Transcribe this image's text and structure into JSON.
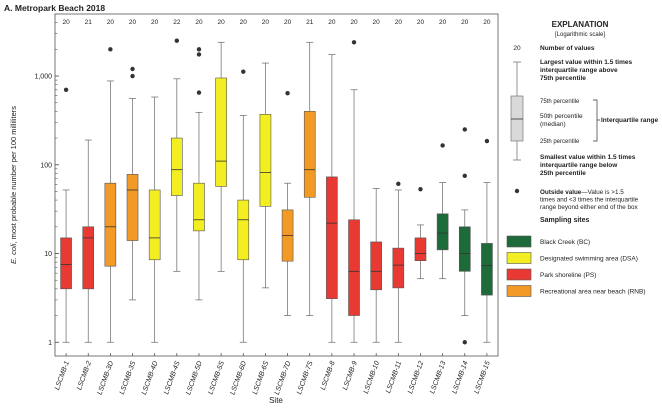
{
  "chart_data": {
    "type": "box",
    "title": "A.  Metropark Beach 2018",
    "xlabel": "Site",
    "ylabel": "E. coli, most probable number per 100 milliliters",
    "ylabel_italic": "E. coli",
    "ylabel_rest": ", most probable number per 100 milliliters",
    "y_scale": "log",
    "ylim": [
      0.7,
      5000
    ],
    "y_ticks": [
      1,
      10,
      100,
      1000
    ],
    "y_tick_labels": [
      "1",
      "10",
      "100",
      "1,000"
    ],
    "legend": {
      "heading": "EXPLANATION",
      "subheading": "[Logarithmic scale]",
      "example_count": "20",
      "count_label": "Number of values",
      "upper_whisker_label": [
        "Largest value within 1.5 times",
        "interquartile range above",
        "75th percentile"
      ],
      "p75_label": "75th percentile",
      "median_label": [
        "50th percentile",
        "(median)"
      ],
      "p25_label": "25th percentile",
      "iqr_label": "Interquartile range",
      "lower_whisker_label": [
        "Smallest value within 1.5 times",
        "interquartile range below",
        "25th percentile"
      ],
      "outside_label_bold": "Outside value",
      "outside_label": [
        "—Value is >1.5",
        "times and <3 times the interquartile",
        "range beyond either end of the box"
      ],
      "sites_heading": "Sampling sites",
      "site_types": [
        {
          "label": "Black Creek (BC)",
          "color": "#1e6b3a"
        },
        {
          "label": "Designated swimming area (DSA)",
          "color": "#f2ee22"
        },
        {
          "label": "Park shoreline (PS)",
          "color": "#e83a33"
        },
        {
          "label": "Recreational area near beach (RNB)",
          "color": "#f39a26"
        }
      ]
    },
    "sites": [
      {
        "site": "LSCMB-1",
        "type": 2,
        "n": "20",
        "min": 1,
        "q1": 4,
        "median": 7.5,
        "q3": 15,
        "max": 52,
        "outliers": [
          700
        ]
      },
      {
        "site": "LSCMB-2",
        "type": 2,
        "n": "21",
        "min": 1,
        "q1": 4,
        "median": 15,
        "q3": 20,
        "max": 190,
        "outliers": []
      },
      {
        "site": "LSCMB-3D",
        "type": 3,
        "n": "20",
        "min": 1,
        "q1": 7.2,
        "median": 20,
        "q3": 62,
        "max": 880,
        "outliers": [
          2000
        ]
      },
      {
        "site": "LSCMB-3S",
        "type": 3,
        "n": "20",
        "min": 3,
        "q1": 14,
        "median": 52,
        "q3": 78,
        "max": 560,
        "outliers": [
          1000,
          1200
        ]
      },
      {
        "site": "LSCMB-4D",
        "type": 1,
        "n": "20",
        "min": 1,
        "q1": 8.5,
        "median": 15,
        "q3": 52,
        "max": 580,
        "outliers": []
      },
      {
        "site": "LSCMB-4S",
        "type": 1,
        "n": "22",
        "min": 6.3,
        "q1": 45,
        "median": 88,
        "q3": 200,
        "max": 930,
        "outliers": [
          2500
        ]
      },
      {
        "site": "LSCMB-5D",
        "type": 1,
        "n": "20",
        "min": 3,
        "q1": 18,
        "median": 24,
        "q3": 62,
        "max": 390,
        "outliers": [
          1750,
          2000,
          650
        ]
      },
      {
        "site": "LSCMB-5S",
        "type": 1,
        "n": "20",
        "min": 6.3,
        "q1": 57,
        "median": 110,
        "q3": 950,
        "max": 2400,
        "outliers": []
      },
      {
        "site": "LSCMB-6D",
        "type": 1,
        "n": "20",
        "min": 1,
        "q1": 8.5,
        "median": 24,
        "q3": 40,
        "max": 360,
        "outliers": [
          1120
        ]
      },
      {
        "site": "LSCMB-6S",
        "type": 1,
        "n": "20",
        "min": 4.1,
        "q1": 34,
        "median": 82,
        "q3": 370,
        "max": 1400,
        "outliers": []
      },
      {
        "site": "LSCMB-7D",
        "type": 3,
        "n": "20",
        "min": 2,
        "q1": 8.2,
        "median": 16,
        "q3": 31,
        "max": 62,
        "outliers": [
          640
        ]
      },
      {
        "site": "LSCMB-7S",
        "type": 3,
        "n": "21",
        "min": 2,
        "q1": 43,
        "median": 88,
        "q3": 400,
        "max": 2400,
        "outliers": []
      },
      {
        "site": "LSCMB-8",
        "type": 2,
        "n": "20",
        "min": 1,
        "q1": 3.1,
        "median": 22,
        "q3": 73,
        "max": 1750,
        "outliers": []
      },
      {
        "site": "LSCMB-9",
        "type": 2,
        "n": "20",
        "min": 1,
        "q1": 2,
        "median": 6.3,
        "q3": 24,
        "max": 700,
        "outliers": [
          2400
        ]
      },
      {
        "site": "LSCMB-10",
        "type": 2,
        "n": "20",
        "min": 1,
        "q1": 3.9,
        "median": 6.3,
        "q3": 13.5,
        "max": 54,
        "outliers": []
      },
      {
        "site": "LSCMB-11",
        "type": 2,
        "n": "20",
        "min": 1,
        "q1": 4.1,
        "median": 7.4,
        "q3": 11.5,
        "max": 52,
        "outliers": [
          61
        ]
      },
      {
        "site": "LSCMB-12",
        "type": 2,
        "n": "20",
        "min": 5.2,
        "q1": 8.3,
        "median": 10,
        "q3": 15,
        "max": 21,
        "outliers": [
          53
        ]
      },
      {
        "site": "LSCMB-13",
        "type": 0,
        "n": "20",
        "min": 5.2,
        "q1": 11,
        "median": 17,
        "q3": 28,
        "max": 63,
        "outliers": [
          165
        ]
      },
      {
        "site": "LSCMB-14",
        "type": 0,
        "n": "20",
        "min": 2,
        "q1": 6.3,
        "median": 10,
        "q3": 20,
        "max": 31,
        "outliers": [
          250,
          75,
          1
        ]
      },
      {
        "site": "LSCMB-15",
        "type": 0,
        "n": "20",
        "min": 1,
        "q1": 3.4,
        "median": 7.3,
        "q3": 13,
        "max": 63,
        "outliers": [
          185
        ]
      }
    ]
  }
}
